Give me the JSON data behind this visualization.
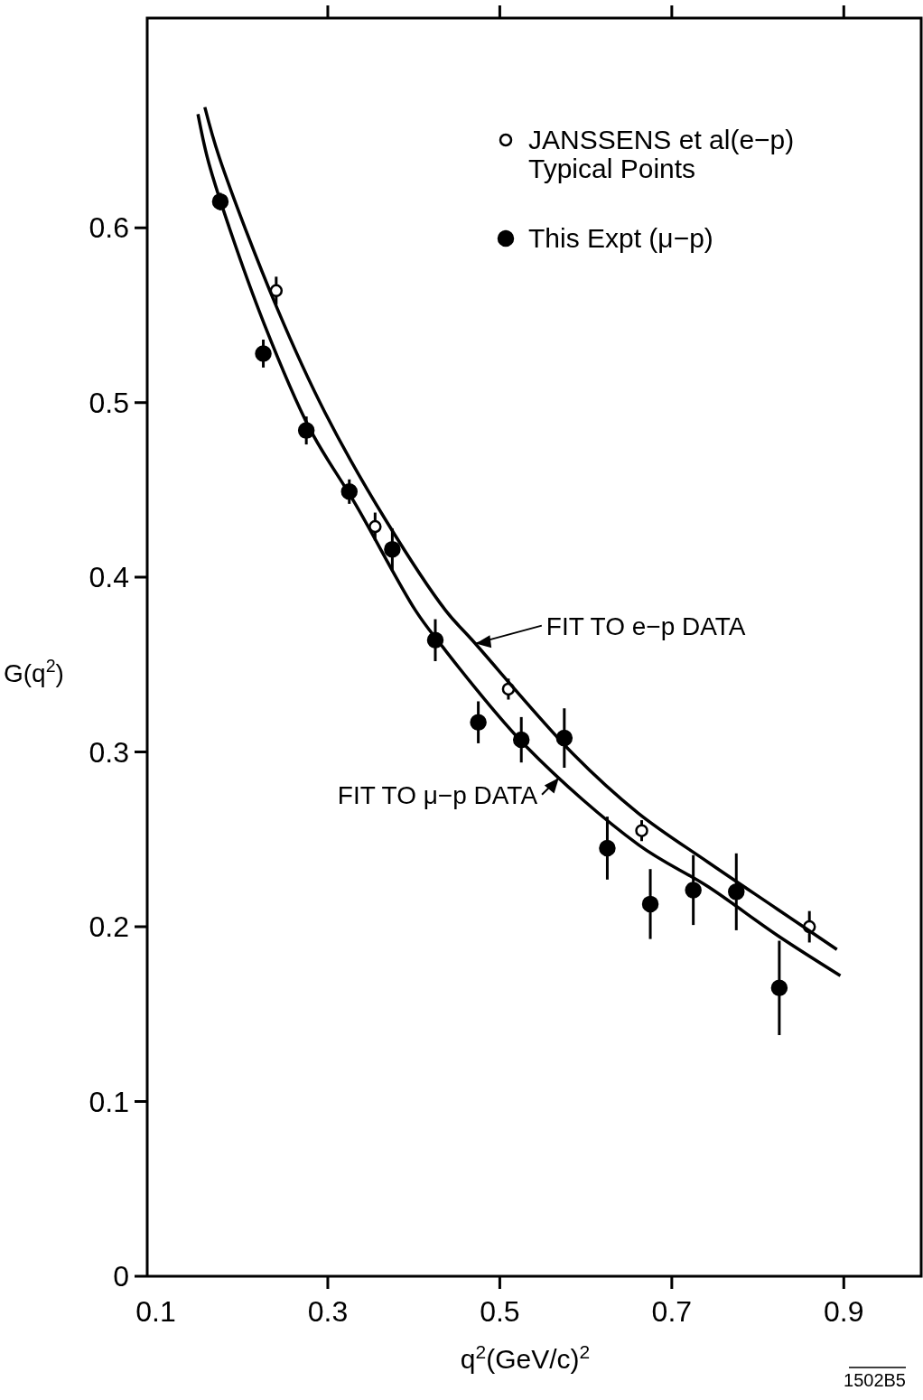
{
  "chart_data": {
    "type": "scatter",
    "xlabel": "q$^{2}$(GeV/c)$^{2}$",
    "ylabel": "G(q$^{2}$)",
    "xlim": [
      0.09,
      0.99
    ],
    "ylim": [
      0,
      0.72
    ],
    "xticks": [
      0.1,
      0.3,
      0.5,
      0.7,
      0.9
    ],
    "yticks": [
      0,
      0.1,
      0.2,
      0.3,
      0.4,
      0.5,
      0.6
    ],
    "grid": false,
    "legend": "top right",
    "series": [
      {
        "name": "JANSSENS et al(e−p)\nTypical Points",
        "type": "scatter",
        "marker": "circle",
        "color": "#000000",
        "x": [
          0.24,
          0.355,
          0.51,
          0.665,
          0.86
        ],
        "values": [
          0.564,
          0.429,
          0.336,
          0.255,
          0.2
        ],
        "errors": [
          0.008,
          0.008,
          0.006,
          0.006,
          0.009
        ]
      },
      {
        "name": "This Expt (μ−p)",
        "type": "scatter",
        "marker": "circle",
        "color": "#000000",
        "x": [
          0.175,
          0.225,
          0.275,
          0.325,
          0.375,
          0.425,
          0.475,
          0.525,
          0.575,
          0.625,
          0.675,
          0.725,
          0.775,
          0.825
        ],
        "values": [
          0.615,
          0.528,
          0.484,
          0.449,
          0.416,
          0.364,
          0.317,
          0.307,
          0.308,
          0.245,
          0.213,
          0.221,
          0.22,
          0.165
        ],
        "errors": [
          0.005,
          0.008,
          0.008,
          0.007,
          0.012,
          0.012,
          0.012,
          0.013,
          0.017,
          0.018,
          0.02,
          0.02,
          0.022,
          0.027
        ]
      },
      {
        "type": "line",
        "color": "#000000",
        "x": [
          0.157,
          0.174,
          0.241,
          0.297,
          0.367,
          0.437,
          0.468,
          0.585,
          0.661,
          0.742,
          0.823,
          0.892
        ],
        "values": [
          0.669,
          0.64,
          0.554,
          0.494,
          0.433,
          0.381,
          0.364,
          0.299,
          0.265,
          0.237,
          0.21,
          0.187
        ]
      },
      {
        "type": "line",
        "color": "#000000",
        "x": [
          0.149,
          0.16,
          0.178,
          0.226,
          0.279,
          0.332,
          0.402,
          0.429,
          0.531,
          0.661,
          0.742,
          0.823,
          0.896
        ],
        "values": [
          0.665,
          0.64,
          0.611,
          0.545,
          0.485,
          0.442,
          0.381,
          0.363,
          0.303,
          0.247,
          0.223,
          0.195,
          0.172
        ]
      }
    ],
    "annotations": [
      {
        "text": "FIT TO e−p DATA",
        "x": 0.47,
        "y": 0.362
      },
      {
        "text": "FIT TO μ−p DATA",
        "x": 0.57,
        "y": 0.286
      },
      "1502B5"
    ]
  }
}
